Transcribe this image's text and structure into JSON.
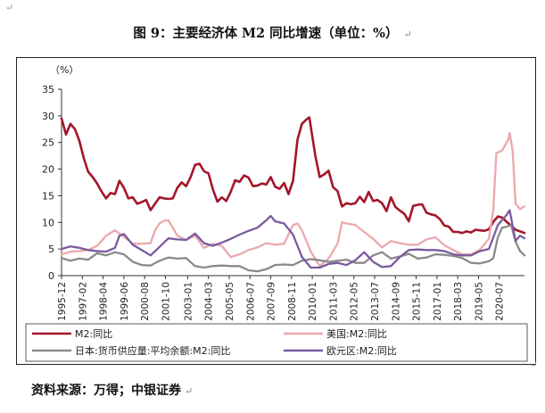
{
  "figure": {
    "title": "图 9：主要经济体 M2 同比增速（单位：%）",
    "source": "资料来源：万得；中银证券"
  },
  "chart_data": {
    "type": "line",
    "ylabel": "（%）",
    "ylim": [
      0,
      35
    ],
    "yticks": [
      0,
      5,
      10,
      15,
      20,
      25,
      30,
      35
    ],
    "xlim": [
      "1995-12",
      "2021-12"
    ],
    "xticks": [
      "1995-12",
      "1997-02",
      "1998-04",
      "1999-06",
      "2000-08",
      "2001-10",
      "2003-01",
      "2004-03",
      "2005-05",
      "2006-07",
      "2007-09",
      "2008-11",
      "2010-01",
      "2011-03",
      "2012-05",
      "2013-07",
      "2014-09",
      "2015-11",
      "2017-01",
      "2018-03",
      "2019-05",
      "2020-07"
    ],
    "legend_position": "bottom",
    "series": [
      {
        "name": "M2:同比",
        "color": "#a3162a",
        "points": [
          [
            "1995-12",
            29.5
          ],
          [
            "1996-03",
            26.5
          ],
          [
            "1996-06",
            28.5
          ],
          [
            "1996-09",
            27.5
          ],
          [
            "1996-12",
            25.3
          ],
          [
            "1997-03",
            22.0
          ],
          [
            "1997-06",
            19.5
          ],
          [
            "1997-09",
            18.5
          ],
          [
            "1997-12",
            17.3
          ],
          [
            "1998-03",
            15.8
          ],
          [
            "1998-06",
            14.5
          ],
          [
            "1998-09",
            15.5
          ],
          [
            "1998-12",
            15.3
          ],
          [
            "1999-03",
            17.8
          ],
          [
            "1999-06",
            16.5
          ],
          [
            "1999-09",
            14.5
          ],
          [
            "1999-12",
            14.7
          ],
          [
            "2000-03",
            13.5
          ],
          [
            "2000-06",
            13.8
          ],
          [
            "2000-09",
            14.2
          ],
          [
            "2000-12",
            12.3
          ],
          [
            "2001-03",
            13.5
          ],
          [
            "2001-06",
            14.7
          ],
          [
            "2001-09",
            14.5
          ],
          [
            "2001-12",
            14.4
          ],
          [
            "2002-03",
            14.5
          ],
          [
            "2002-06",
            16.5
          ],
          [
            "2002-09",
            17.5
          ],
          [
            "2002-12",
            16.8
          ],
          [
            "2003-03",
            18.5
          ],
          [
            "2003-06",
            20.8
          ],
          [
            "2003-09",
            21.0
          ],
          [
            "2003-12",
            19.6
          ],
          [
            "2004-03",
            19.2
          ],
          [
            "2004-06",
            16.2
          ],
          [
            "2004-09",
            13.9
          ],
          [
            "2004-12",
            14.7
          ],
          [
            "2005-03",
            14.0
          ],
          [
            "2005-06",
            15.7
          ],
          [
            "2005-09",
            17.9
          ],
          [
            "2005-12",
            17.6
          ],
          [
            "2006-03",
            18.8
          ],
          [
            "2006-06",
            18.4
          ],
          [
            "2006-09",
            16.8
          ],
          [
            "2006-12",
            16.9
          ],
          [
            "2007-03",
            17.3
          ],
          [
            "2007-06",
            17.1
          ],
          [
            "2007-09",
            18.5
          ],
          [
            "2007-12",
            16.7
          ],
          [
            "2008-03",
            16.3
          ],
          [
            "2008-06",
            17.4
          ],
          [
            "2008-09",
            15.3
          ],
          [
            "2008-12",
            17.8
          ],
          [
            "2009-03",
            25.5
          ],
          [
            "2009-06",
            28.5
          ],
          [
            "2009-09",
            29.3
          ],
          [
            "2009-11",
            29.7
          ],
          [
            "2010-03",
            22.5
          ],
          [
            "2010-06",
            18.5
          ],
          [
            "2010-09",
            19.0
          ],
          [
            "2010-12",
            19.7
          ],
          [
            "2011-03",
            16.6
          ],
          [
            "2011-06",
            15.9
          ],
          [
            "2011-09",
            13.0
          ],
          [
            "2011-12",
            13.6
          ],
          [
            "2012-03",
            13.4
          ],
          [
            "2012-06",
            13.6
          ],
          [
            "2012-09",
            14.8
          ],
          [
            "2012-12",
            13.8
          ],
          [
            "2013-03",
            15.7
          ],
          [
            "2013-06",
            14.0
          ],
          [
            "2013-09",
            14.2
          ],
          [
            "2013-12",
            13.6
          ],
          [
            "2014-03",
            12.1
          ],
          [
            "2014-06",
            14.7
          ],
          [
            "2014-09",
            12.9
          ],
          [
            "2014-12",
            12.2
          ],
          [
            "2015-03",
            11.6
          ],
          [
            "2015-06",
            10.2
          ],
          [
            "2015-09",
            13.1
          ],
          [
            "2015-12",
            13.3
          ],
          [
            "2016-03",
            13.4
          ],
          [
            "2016-06",
            11.8
          ],
          [
            "2016-09",
            11.5
          ],
          [
            "2016-12",
            11.3
          ],
          [
            "2017-03",
            10.6
          ],
          [
            "2017-06",
            9.4
          ],
          [
            "2017-09",
            9.2
          ],
          [
            "2017-12",
            8.2
          ],
          [
            "2018-03",
            8.2
          ],
          [
            "2018-06",
            8.0
          ],
          [
            "2018-09",
            8.3
          ],
          [
            "2018-12",
            8.1
          ],
          [
            "2019-03",
            8.6
          ],
          [
            "2019-06",
            8.5
          ],
          [
            "2019-09",
            8.4
          ],
          [
            "2019-12",
            8.7
          ],
          [
            "2020-03",
            10.1
          ],
          [
            "2020-06",
            11.1
          ],
          [
            "2020-09",
            10.9
          ],
          [
            "2020-12",
            10.1
          ],
          [
            "2021-03",
            9.4
          ],
          [
            "2021-06",
            8.6
          ],
          [
            "2021-09",
            8.3
          ],
          [
            "2021-12",
            8.0
          ]
        ]
      },
      {
        "name": "美国:M2:同比",
        "color": "#eba9ad",
        "points": [
          [
            "1995-12",
            4.0
          ],
          [
            "1996-06",
            4.5
          ],
          [
            "1996-12",
            4.6
          ],
          [
            "1997-06",
            4.8
          ],
          [
            "1997-12",
            5.6
          ],
          [
            "1998-06",
            7.5
          ],
          [
            "1998-12",
            8.5
          ],
          [
            "1999-06",
            7.3
          ],
          [
            "1999-12",
            6.0
          ],
          [
            "2000-06",
            6.0
          ],
          [
            "2000-12",
            6.1
          ],
          [
            "2001-03",
            8.5
          ],
          [
            "2001-06",
            9.8
          ],
          [
            "2001-09",
            10.3
          ],
          [
            "2001-12",
            10.4
          ],
          [
            "2002-06",
            7.5
          ],
          [
            "2002-12",
            6.7
          ],
          [
            "2003-06",
            7.5
          ],
          [
            "2003-12",
            5.2
          ],
          [
            "2004-06",
            6.0
          ],
          [
            "2004-12",
            5.6
          ],
          [
            "2005-06",
            3.5
          ],
          [
            "2005-12",
            4.0
          ],
          [
            "2006-06",
            4.8
          ],
          [
            "2006-12",
            5.3
          ],
          [
            "2007-06",
            6.1
          ],
          [
            "2007-12",
            5.8
          ],
          [
            "2008-06",
            6.0
          ],
          [
            "2008-12",
            9.5
          ],
          [
            "2009-03",
            9.8
          ],
          [
            "2009-06",
            8.5
          ],
          [
            "2009-12",
            4.5
          ],
          [
            "2010-06",
            1.8
          ],
          [
            "2010-12",
            3.2
          ],
          [
            "2011-06",
            6.0
          ],
          [
            "2011-09",
            10.0
          ],
          [
            "2011-12",
            9.8
          ],
          [
            "2012-06",
            9.5
          ],
          [
            "2012-12",
            8.2
          ],
          [
            "2013-06",
            6.9
          ],
          [
            "2013-12",
            5.3
          ],
          [
            "2014-06",
            6.5
          ],
          [
            "2014-12",
            6.1
          ],
          [
            "2015-06",
            5.8
          ],
          [
            "2015-12",
            5.8
          ],
          [
            "2016-06",
            6.8
          ],
          [
            "2016-12",
            7.2
          ],
          [
            "2017-06",
            5.7
          ],
          [
            "2017-12",
            4.8
          ],
          [
            "2018-06",
            4.0
          ],
          [
            "2018-12",
            4.0
          ],
          [
            "2019-06",
            4.9
          ],
          [
            "2019-12",
            6.9
          ],
          [
            "2020-03",
            12.5
          ],
          [
            "2020-05",
            23.0
          ],
          [
            "2020-09",
            23.5
          ],
          [
            "2021-01",
            25.5
          ],
          [
            "2021-02",
            26.8
          ],
          [
            "2021-04",
            23.5
          ],
          [
            "2021-06",
            13.5
          ],
          [
            "2021-09",
            12.5
          ],
          [
            "2021-12",
            13.0
          ]
        ]
      },
      {
        "name": "日本:货币供应量:平均余额:M2:同比",
        "color": "#8a8a8a",
        "points": [
          [
            "1995-12",
            3.3
          ],
          [
            "1996-06",
            2.8
          ],
          [
            "1996-12",
            3.2
          ],
          [
            "1997-06",
            3.0
          ],
          [
            "1997-12",
            4.2
          ],
          [
            "1998-06",
            3.8
          ],
          [
            "1998-12",
            4.4
          ],
          [
            "1999-06",
            4.0
          ],
          [
            "1999-12",
            2.6
          ],
          [
            "2000-06",
            2.0
          ],
          [
            "2000-12",
            1.9
          ],
          [
            "2001-06",
            2.8
          ],
          [
            "2001-12",
            3.4
          ],
          [
            "2002-06",
            3.2
          ],
          [
            "2002-12",
            3.3
          ],
          [
            "2003-06",
            1.8
          ],
          [
            "2003-12",
            1.5
          ],
          [
            "2004-06",
            1.8
          ],
          [
            "2004-12",
            1.9
          ],
          [
            "2005-06",
            1.8
          ],
          [
            "2005-12",
            1.8
          ],
          [
            "2006-06",
            1.0
          ],
          [
            "2006-12",
            0.8
          ],
          [
            "2007-06",
            1.2
          ],
          [
            "2007-12",
            2.0
          ],
          [
            "2008-06",
            2.1
          ],
          [
            "2008-12",
            2.0
          ],
          [
            "2009-06",
            2.8
          ],
          [
            "2009-12",
            3.1
          ],
          [
            "2010-06",
            2.9
          ],
          [
            "2010-12",
            2.6
          ],
          [
            "2011-06",
            2.8
          ],
          [
            "2011-12",
            3.0
          ],
          [
            "2012-06",
            2.4
          ],
          [
            "2012-12",
            2.4
          ],
          [
            "2013-06",
            3.8
          ],
          [
            "2013-12",
            4.4
          ],
          [
            "2014-06",
            3.2
          ],
          [
            "2014-12",
            3.6
          ],
          [
            "2015-06",
            4.1
          ],
          [
            "2015-12",
            3.2
          ],
          [
            "2016-06",
            3.4
          ],
          [
            "2016-12",
            4.0
          ],
          [
            "2017-06",
            3.9
          ],
          [
            "2017-12",
            3.7
          ],
          [
            "2018-06",
            3.3
          ],
          [
            "2018-12",
            2.4
          ],
          [
            "2019-06",
            2.3
          ],
          [
            "2019-12",
            2.7
          ],
          [
            "2020-03",
            3.3
          ],
          [
            "2020-06",
            7.2
          ],
          [
            "2020-09",
            9.0
          ],
          [
            "2020-12",
            9.2
          ],
          [
            "2021-03",
            9.5
          ],
          [
            "2021-06",
            6.4
          ],
          [
            "2021-09",
            4.6
          ],
          [
            "2021-12",
            3.8
          ]
        ]
      },
      {
        "name": "欧元区:M2:同比",
        "color": "#7a5aa0",
        "points": [
          [
            "1995-12",
            5.0
          ],
          [
            "1996-06",
            5.5
          ],
          [
            "1996-12",
            5.2
          ],
          [
            "1997-06",
            4.8
          ],
          [
            "1997-12",
            4.6
          ],
          [
            "1998-06",
            4.5
          ],
          [
            "1998-12",
            5.2
          ],
          [
            "1999-03",
            7.5
          ],
          [
            "1999-06",
            7.8
          ],
          [
            "1999-12",
            5.8
          ],
          [
            "2000-06",
            4.8
          ],
          [
            "2000-12",
            3.8
          ],
          [
            "2001-06",
            5.4
          ],
          [
            "2001-12",
            7.0
          ],
          [
            "2002-06",
            6.8
          ],
          [
            "2002-12",
            6.7
          ],
          [
            "2003-06",
            7.9
          ],
          [
            "2003-12",
            6.1
          ],
          [
            "2004-06",
            5.6
          ],
          [
            "2004-12",
            6.2
          ],
          [
            "2005-06",
            6.9
          ],
          [
            "2005-12",
            7.7
          ],
          [
            "2006-06",
            8.4
          ],
          [
            "2006-12",
            9.0
          ],
          [
            "2007-06",
            10.4
          ],
          [
            "2007-09",
            11.2
          ],
          [
            "2007-12",
            10.2
          ],
          [
            "2008-06",
            9.8
          ],
          [
            "2008-12",
            7.7
          ],
          [
            "2009-06",
            3.5
          ],
          [
            "2009-12",
            1.5
          ],
          [
            "2010-06",
            1.5
          ],
          [
            "2010-12",
            2.2
          ],
          [
            "2011-06",
            2.4
          ],
          [
            "2011-12",
            2.0
          ],
          [
            "2012-06",
            2.9
          ],
          [
            "2012-12",
            4.4
          ],
          [
            "2013-06",
            2.6
          ],
          [
            "2013-12",
            1.6
          ],
          [
            "2014-06",
            1.8
          ],
          [
            "2014-12",
            3.5
          ],
          [
            "2015-06",
            4.8
          ],
          [
            "2015-12",
            4.9
          ],
          [
            "2016-06",
            4.8
          ],
          [
            "2016-12",
            4.8
          ],
          [
            "2017-06",
            4.6
          ],
          [
            "2017-12",
            4.0
          ],
          [
            "2018-06",
            3.8
          ],
          [
            "2018-12",
            3.8
          ],
          [
            "2019-06",
            4.6
          ],
          [
            "2019-12",
            5.0
          ],
          [
            "2020-03",
            7.2
          ],
          [
            "2020-06",
            9.5
          ],
          [
            "2020-12",
            11.4
          ],
          [
            "2021-02",
            12.3
          ],
          [
            "2021-06",
            6.5
          ],
          [
            "2021-09",
            7.5
          ],
          [
            "2021-12",
            7.0
          ]
        ]
      }
    ]
  }
}
